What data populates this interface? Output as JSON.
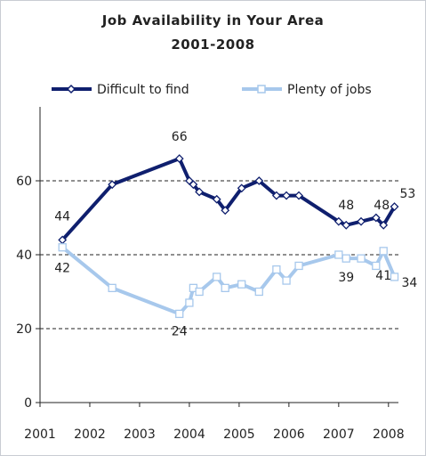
{
  "chart_data": {
    "type": "line",
    "title": "Job Availability in Your Area",
    "subtitle": "2001-2008",
    "xlabel": "",
    "ylabel": "",
    "xlim": [
      2001,
      2008.2
    ],
    "ylim": [
      0,
      80
    ],
    "x_ticks": [
      "2001",
      "2002",
      "2003",
      "2004",
      "2005",
      "2006",
      "2007",
      "2008"
    ],
    "y_ticks": [
      "0",
      "20",
      "40",
      "60"
    ],
    "dashed_gridlines": [
      20,
      40,
      60
    ],
    "legend_position": "top",
    "series": [
      {
        "name": "Difficult to find",
        "color": "#0f1f6e",
        "marker": "diamond",
        "x": [
          2001.45,
          2002.45,
          2003.8,
          2004.0,
          2004.08,
          2004.2,
          2004.55,
          2004.72,
          2005.05,
          2005.4,
          2005.75,
          2005.95,
          2006.2,
          2007.0,
          2007.15,
          2007.45,
          2007.75,
          2007.9,
          2008.12
        ],
        "values": [
          44,
          59,
          66,
          60,
          59,
          57,
          55,
          52,
          58,
          60,
          56,
          56,
          56,
          49,
          48,
          49,
          50,
          48,
          53
        ]
      },
      {
        "name": "Plenty of jobs",
        "color": "#a7c8ec",
        "marker": "square",
        "x": [
          2001.45,
          2002.45,
          2003.8,
          2004.0,
          2004.08,
          2004.2,
          2004.55,
          2004.72,
          2005.05,
          2005.4,
          2005.75,
          2005.95,
          2006.2,
          2007.0,
          2007.15,
          2007.45,
          2007.75,
          2007.9,
          2008.12
        ],
        "values": [
          42,
          31,
          24,
          27,
          31,
          30,
          34,
          31,
          32,
          30,
          36,
          33,
          37,
          40,
          39,
          39,
          37,
          41,
          34
        ]
      }
    ],
    "data_labels": [
      {
        "series": 0,
        "index": 0,
        "text": "44"
      },
      {
        "series": 0,
        "index": 2,
        "text": "66"
      },
      {
        "series": 0,
        "index": 14,
        "text": "48"
      },
      {
        "series": 0,
        "index": 17,
        "text": "48"
      },
      {
        "series": 0,
        "index": 18,
        "text": "53"
      },
      {
        "series": 1,
        "index": 0,
        "text": "42"
      },
      {
        "series": 1,
        "index": 2,
        "text": "24"
      },
      {
        "series": 1,
        "index": 14,
        "text": "39"
      },
      {
        "series": 1,
        "index": 17,
        "text": "41"
      },
      {
        "series": 1,
        "index": 18,
        "text": "34"
      }
    ]
  }
}
